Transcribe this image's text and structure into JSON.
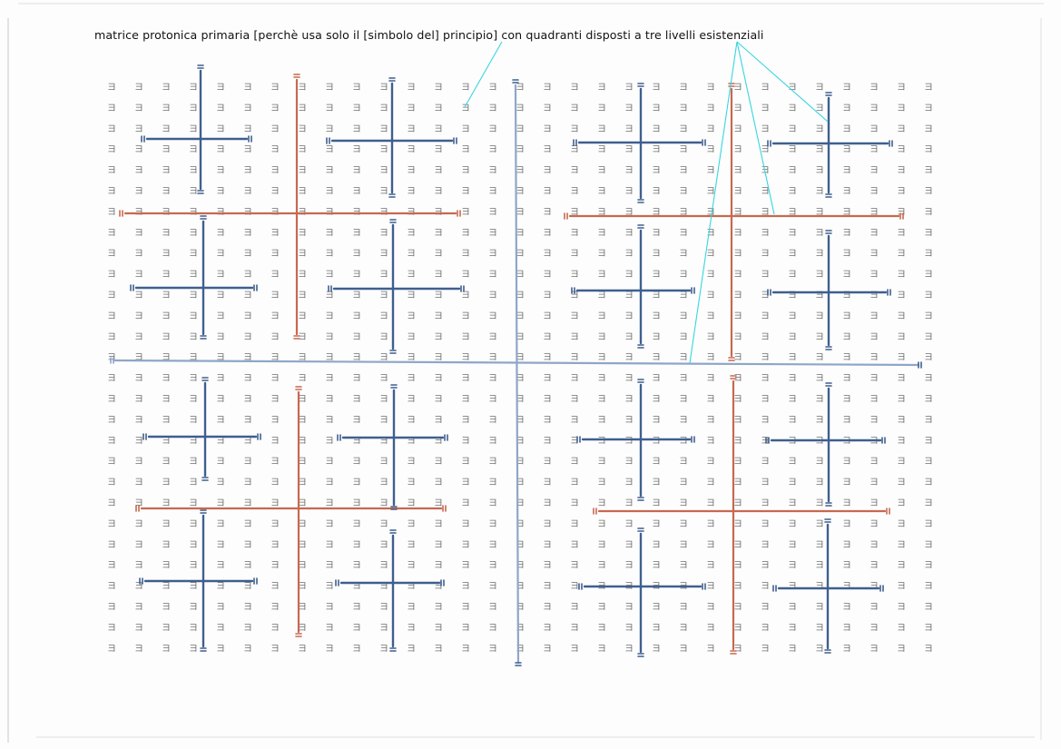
{
  "caption": "matrice protonica primaria [perchè usa solo il [simbolo del] principio] con quadranti disposti a tre livelli esistenziali",
  "grid": {
    "glyph": "ヨ",
    "rows": 28,
    "cols": 31
  },
  "colors": {
    "background": "#fdfdfd",
    "glyph": "#6f6f6f",
    "blue": "#3f5f8f",
    "light_blue": "#8fa6c9",
    "red": "#c8684f",
    "pointer": "#37d6e0",
    "text": "#111111"
  }
}
